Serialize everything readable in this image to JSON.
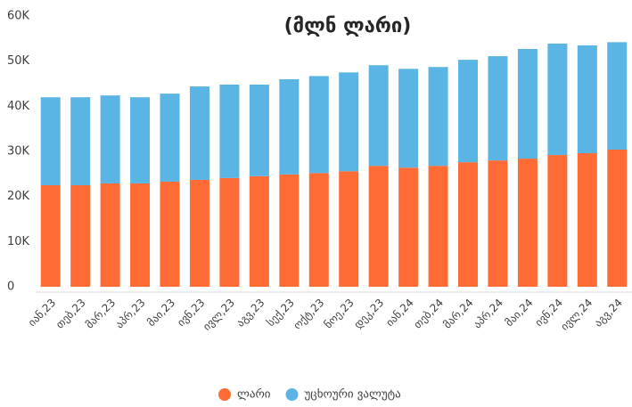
{
  "chart_data": {
    "type": "bar",
    "stacked": true,
    "title": "(მლნ ლარი)",
    "categories": [
      "იან,23",
      "თებ,23",
      "მარ,23",
      "აპრ,23",
      "მაი,23",
      "ივნ,23",
      "ივლ,23",
      "აგვ,23",
      "სექ,23",
      "ოქტ,23",
      "ნოე,23",
      "დეკ,23",
      "იან,24",
      "თებ,24",
      "მარ,24",
      "აპრ,24",
      "მაი,24",
      "ივნ,24",
      "ივლ,24",
      "აგვ,24"
    ],
    "series": [
      {
        "name": "ლარი",
        "color": "#ff6b35",
        "values": [
          22500,
          22500,
          22900,
          22900,
          23300,
          23700,
          24100,
          24500,
          24900,
          25200,
          25600,
          26800,
          26400,
          26800,
          27600,
          28000,
          28400,
          29200,
          29600,
          30400
        ]
      },
      {
        "name": "უცხოური ვალუტა",
        "color": "#5ab4e4",
        "values": [
          19500,
          19500,
          19500,
          19100,
          19500,
          20700,
          20700,
          20300,
          21100,
          21500,
          21900,
          22300,
          21900,
          21900,
          22700,
          23100,
          24300,
          24700,
          23900,
          23800
        ]
      }
    ],
    "ylim": [
      0,
      60000
    ],
    "yticks": [
      0,
      {
        "value": 10000,
        "label": "10K"
      },
      {
        "value": 20000,
        "label": "20K"
      },
      {
        "value": 30000,
        "label": "30K"
      },
      {
        "value": 40000,
        "label": "40K"
      },
      {
        "value": 50000,
        "label": "50K"
      },
      {
        "value": 60000,
        "label": "60K"
      }
    ],
    "grid": false,
    "legend": "bottom"
  }
}
